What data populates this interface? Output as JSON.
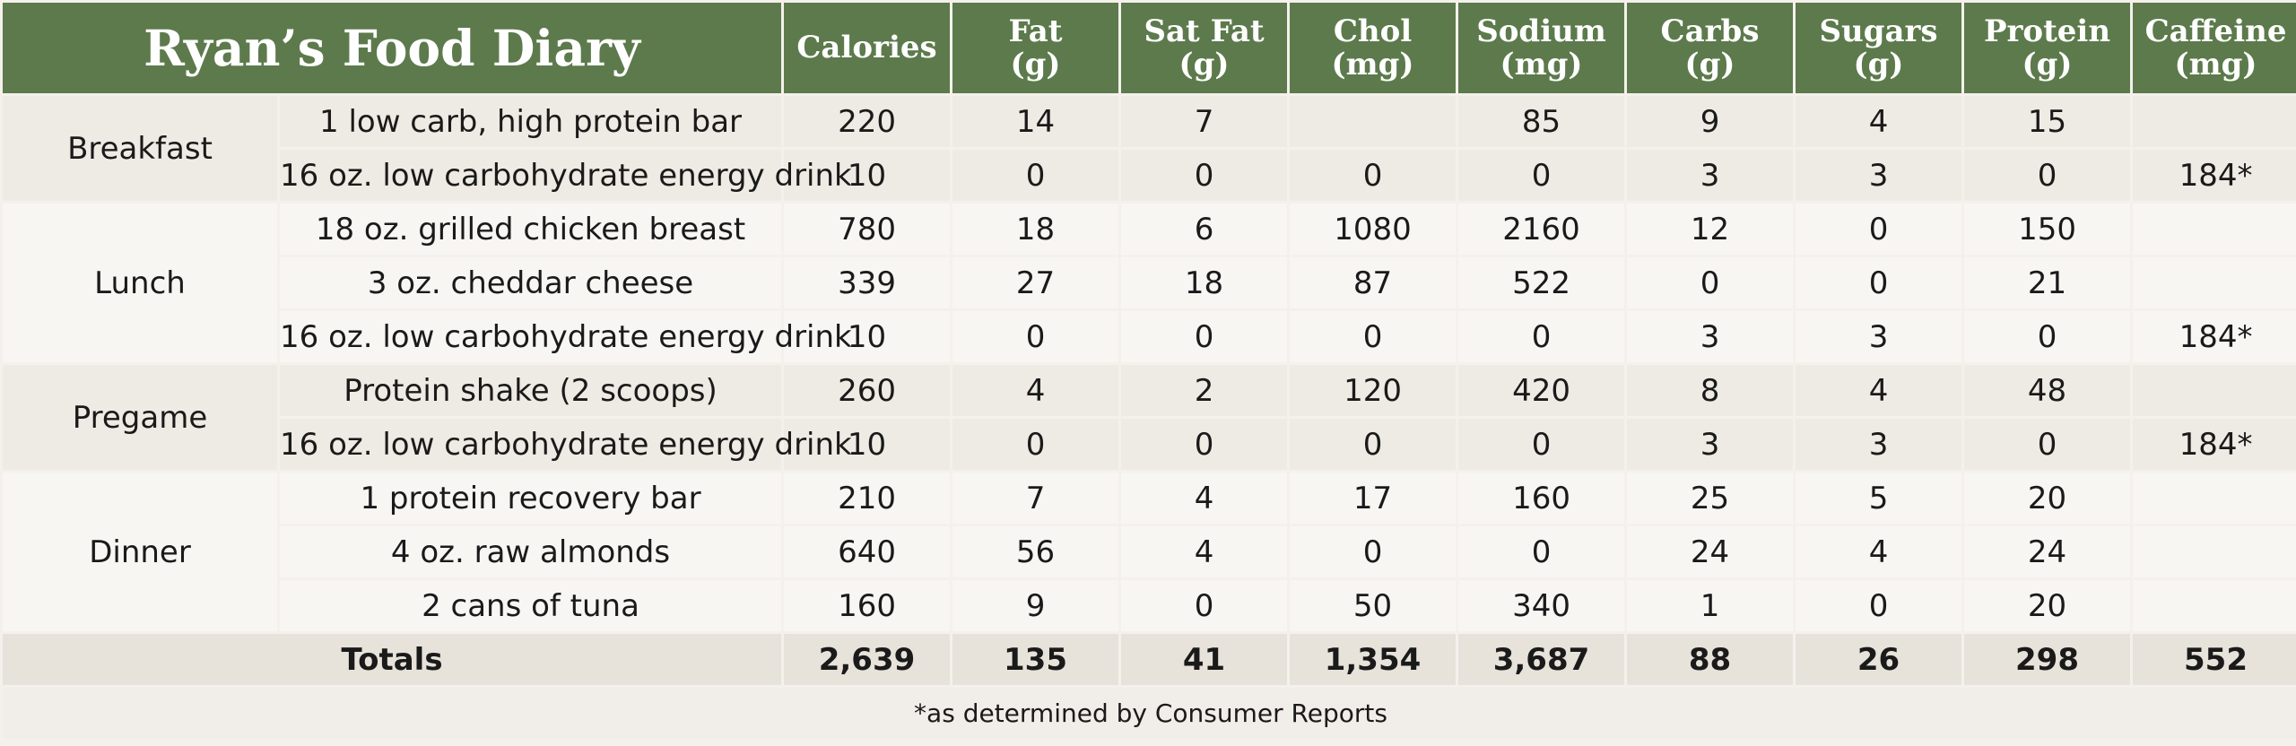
{
  "title": "Ryan’s Food Diary",
  "columns": [
    [
      "Calories"
    ],
    [
      "Fat",
      "(g)"
    ],
    [
      "Sat Fat",
      "(g)"
    ],
    [
      "Chol",
      "(mg)"
    ],
    [
      "Sodium",
      "(mg)"
    ],
    [
      "Carbs",
      "(g)"
    ],
    [
      "Sugars",
      "(g)"
    ],
    [
      "Protein",
      "(g)"
    ],
    [
      "Caffeine",
      "(mg)"
    ]
  ],
  "meals": [
    {
      "name": "Breakfast",
      "items": [
        {
          "name": "1 low carb, high protein bar",
          "values": [
            "220",
            "14",
            "7",
            "",
            "85",
            "9",
            "4",
            "15",
            ""
          ]
        },
        {
          "name": "16 oz. low carbohydrate energy drink",
          "values": [
            "10",
            "0",
            "0",
            "0",
            "0",
            "3",
            "3",
            "0",
            "184*"
          ]
        }
      ]
    },
    {
      "name": "Lunch",
      "items": [
        {
          "name": "18 oz. grilled chicken breast",
          "values": [
            "780",
            "18",
            "6",
            "1080",
            "2160",
            "12",
            "0",
            "150",
            ""
          ]
        },
        {
          "name": "3 oz. cheddar cheese",
          "values": [
            "339",
            "27",
            "18",
            "87",
            "522",
            "0",
            "0",
            "21",
            ""
          ]
        },
        {
          "name": "16 oz. low carbohydrate energy drink",
          "values": [
            "10",
            "0",
            "0",
            "0",
            "0",
            "3",
            "3",
            "0",
            "184*"
          ]
        }
      ]
    },
    {
      "name": "Pregame",
      "items": [
        {
          "name": "Protein shake (2 scoops)",
          "values": [
            "260",
            "4",
            "2",
            "120",
            "420",
            "8",
            "4",
            "48",
            ""
          ]
        },
        {
          "name": "16 oz. low carbohydrate energy drink",
          "values": [
            "10",
            "0",
            "0",
            "0",
            "0",
            "3",
            "3",
            "0",
            "184*"
          ]
        }
      ]
    },
    {
      "name": "Dinner",
      "items": [
        {
          "name": "1 protein recovery bar",
          "values": [
            "210",
            "7",
            "4",
            "17",
            "160",
            "25",
            "5",
            "20",
            ""
          ]
        },
        {
          "name": "4 oz. raw almonds",
          "values": [
            "640",
            "56",
            "4",
            "0",
            "0",
            "24",
            "4",
            "24",
            ""
          ]
        },
        {
          "name": "2 cans of tuna",
          "values": [
            "160",
            "9",
            "0",
            "50",
            "340",
            "1",
            "0",
            "20",
            ""
          ]
        }
      ]
    }
  ],
  "totals": {
    "label": "Totals",
    "values": [
      "2,639",
      "135",
      "41",
      "1,354",
      "3,687",
      "88",
      "26",
      "298",
      "552"
    ]
  },
  "footnote": "*as determined by Consumer Reports"
}
